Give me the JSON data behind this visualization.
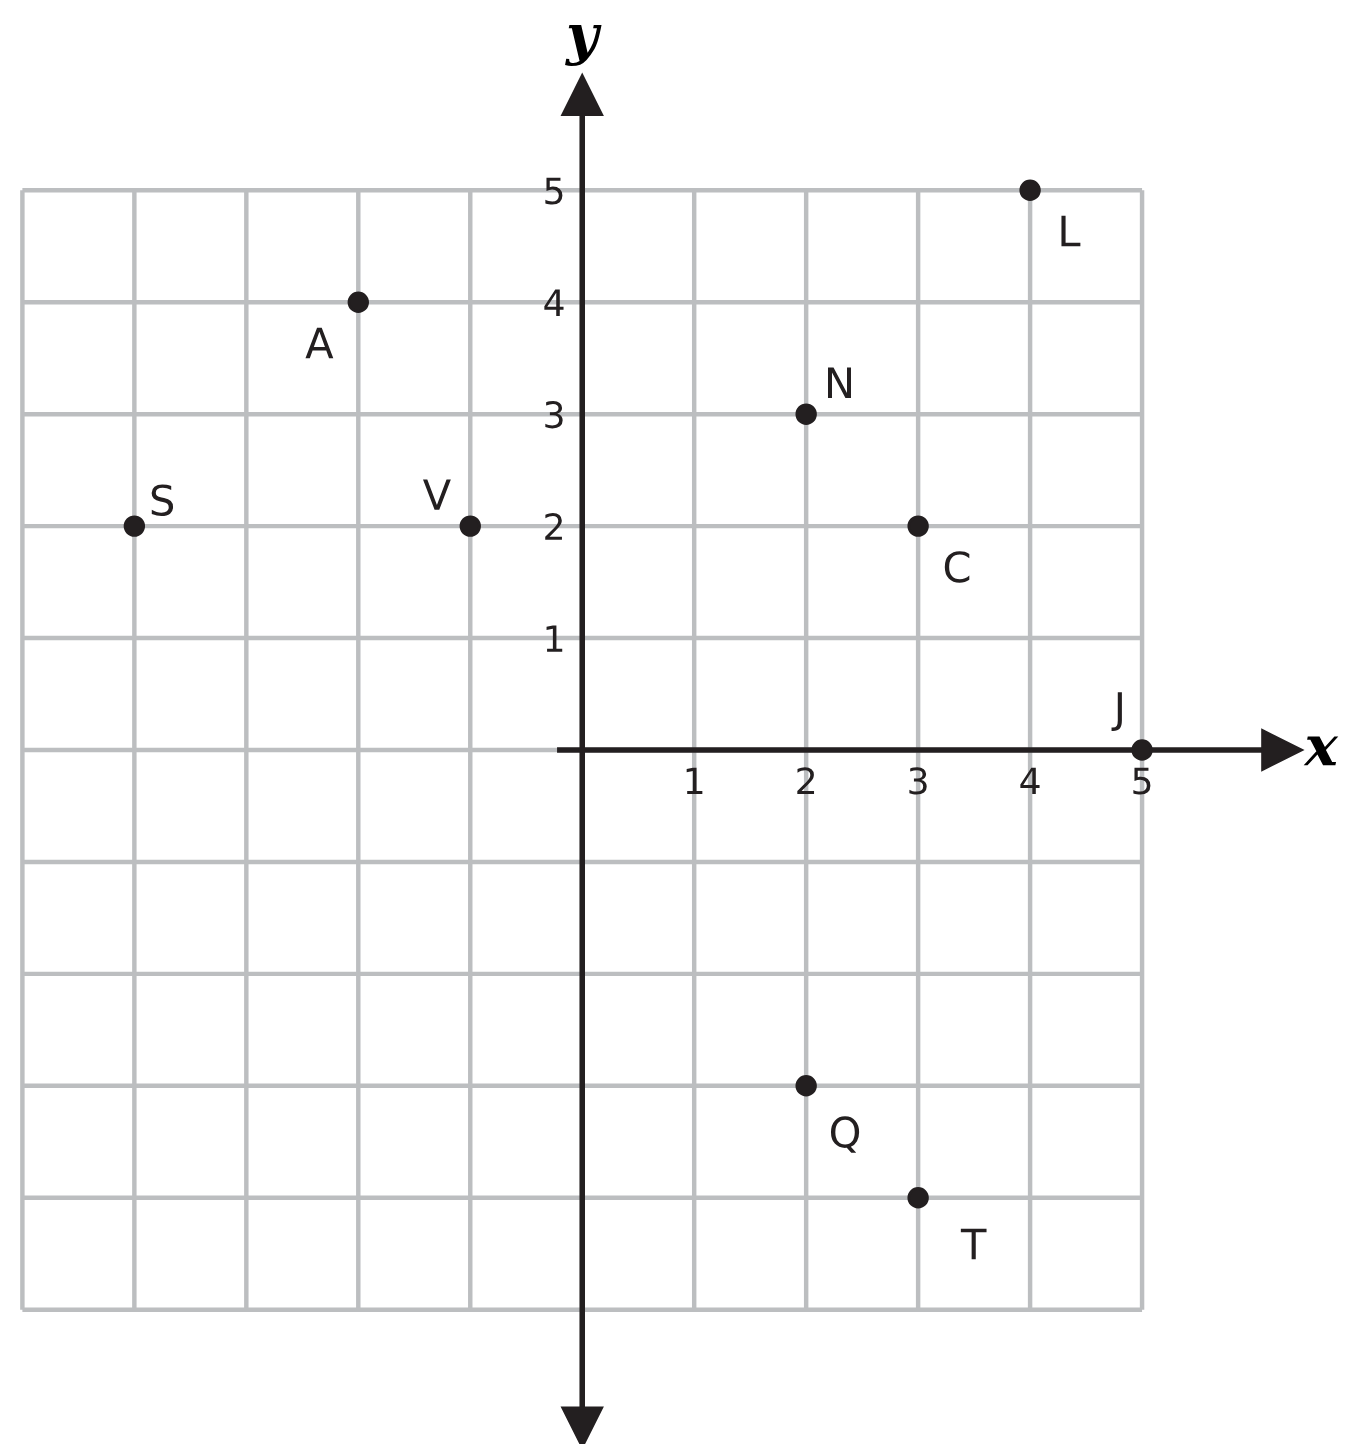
{
  "chart_data": {
    "type": "scatter",
    "xlabel": "x",
    "ylabel": "y",
    "x": [
      -2,
      -4,
      -1,
      2,
      3,
      4,
      5,
      2,
      3
    ],
    "values": [
      4,
      2,
      2,
      3,
      2,
      5,
      0,
      -3,
      -4
    ],
    "color": "#231f20",
    "marker": "circle",
    "xlim": [
      -5.2,
      7
    ],
    "ylim": [
      -6.2,
      6.7
    ],
    "xticks": [
      {
        "value": -5,
        "label": null
      },
      {
        "value": -4,
        "label": null
      },
      {
        "value": -3,
        "label": null
      },
      {
        "value": -2,
        "label": null
      },
      {
        "value": -1,
        "label": null
      },
      {
        "value": 0,
        "label": null
      },
      1,
      2,
      3,
      4,
      5
    ],
    "yticks": [
      {
        "value": -5,
        "label": null
      },
      {
        "value": -4,
        "label": null
      },
      {
        "value": -3,
        "label": null
      },
      {
        "value": -2,
        "label": null
      },
      {
        "value": -1,
        "label": null
      },
      {
        "value": 0,
        "label": null
      },
      1,
      2,
      3,
      4,
      5
    ],
    "grid": true,
    "annotations": [
      {
        "text": "A",
        "x": -2,
        "y": 4
      },
      {
        "text": "S",
        "x": -4,
        "y": 2
      },
      {
        "text": "V",
        "x": -1,
        "y": 2
      },
      {
        "text": "N",
        "x": 2,
        "y": 3
      },
      {
        "text": "C",
        "x": 3,
        "y": 2
      },
      {
        "text": "L",
        "x": 4,
        "y": 5
      },
      {
        "text": "J",
        "x": 5,
        "y": 0
      },
      {
        "text": "Q",
        "x": 2,
        "y": -3
      },
      {
        "text": "T",
        "x": 3,
        "y": -4
      }
    ]
  }
}
